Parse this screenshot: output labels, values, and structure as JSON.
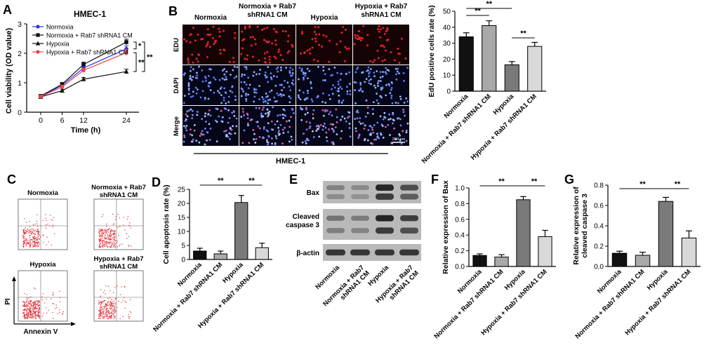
{
  "panel_letters": {
    "A": "A",
    "B": "B",
    "C": "C",
    "D": "D",
    "E": "E",
    "F": "F",
    "G": "G"
  },
  "colors": {
    "black": "#111111",
    "gray_light": "#a9a9a9",
    "gray_mid": "#7a7a7a",
    "gray_pale": "#d9d9d9",
    "blue": "#2b35e0",
    "red": "#e8474c"
  },
  "conditions": [
    "Normoxia",
    "Normoxia + Rab7 shRNA1 CM",
    "Hypoxia",
    "Hypoxia + Rab7 shRNA1 CM"
  ],
  "panel_b": {
    "col_headers": [
      "Normoxia",
      "Normoxia + Rab7\nshRNA1 CM",
      "Hypoxia",
      "Hypoxia + Rab7\nshRNA1 CM"
    ],
    "row_labels": [
      "EDU",
      "DAPI",
      "Merge"
    ],
    "scale_bar": "200 μm",
    "caption": "HMEC-1"
  },
  "panel_c": {
    "titles": [
      "Normoxia",
      "Normoxia + Rab7\nshRNA1 CM",
      "Hypoxia",
      "Hypoxia + Rab7\nshRNA1 CM"
    ],
    "ylabel": "PI",
    "xlabel": "Annexin V"
  },
  "panel_e": {
    "bands": [
      "Bax",
      "Cleaved\ncaspase 3",
      "β-actin"
    ],
    "lanes": [
      "Normoxia",
      "Normoxia + Rab7\nshRNA1 CM",
      "Hypoxia",
      "Hypoxia + Rab7\nshRNA1 CM"
    ]
  },
  "chart_data": [
    {
      "id": "A",
      "type": "line",
      "title": "HMEC-1",
      "xlabel": "Time (h)",
      "ylabel": "Cell viability (OD value)",
      "x": [
        0,
        6,
        12,
        24
      ],
      "ylim": [
        0,
        3
      ],
      "yticks": [
        0,
        1,
        2,
        3
      ],
      "series": [
        {
          "name": "Normoxia",
          "color": "#2b35e0",
          "marker": "circle",
          "values": [
            0.54,
            0.91,
            1.5,
            2.15
          ],
          "errors": [
            0.05,
            0.06,
            0.08,
            0.1
          ]
        },
        {
          "name": "Normoxia + Rab7 shRNA1 CM",
          "color": "#111111",
          "marker": "square",
          "values": [
            0.55,
            0.95,
            1.62,
            2.38
          ],
          "errors": [
            0.05,
            0.06,
            0.08,
            0.1
          ]
        },
        {
          "name": "Hypoxia",
          "color": "#111111",
          "marker": "triangle",
          "values": [
            0.52,
            0.73,
            1.12,
            1.38
          ],
          "errors": [
            0.04,
            0.05,
            0.06,
            0.08
          ]
        },
        {
          "name": "Hypoxia + Rab7 shRNA1 CM",
          "color": "#e8474c",
          "marker": "circle",
          "values": [
            0.53,
            0.86,
            1.42,
            2.02
          ],
          "errors": [
            0.05,
            0.06,
            0.07,
            0.1
          ]
        }
      ],
      "annotations": [
        "*",
        "**",
        "**"
      ]
    },
    {
      "id": "B",
      "type": "bar",
      "ylabel": "EdU positive cells rate (%)",
      "categories": [
        "Normoxia",
        "Normoxia + Rab7 shRNA1 CM",
        "Hypoxia",
        "Hypoxia + Rab7 shRNA1 CM"
      ],
      "values": [
        34,
        41,
        16.5,
        28
      ],
      "errors": [
        2.5,
        3.0,
        2.0,
        2.5
      ],
      "ylim": [
        0,
        50
      ],
      "yticks": [
        0,
        10,
        20,
        30,
        40,
        50
      ],
      "annotations": [
        "**",
        "**",
        "**"
      ]
    },
    {
      "id": "D",
      "type": "bar",
      "ylabel": "Cell apoptosis rate (%)",
      "categories": [
        "Normoxia",
        "Normoxia + Rab7 shRNA1 CM",
        "Hypoxia",
        "Hypoxia + Rab7 shRNA1 CM"
      ],
      "values": [
        3.0,
        2.0,
        20.3,
        4.2
      ],
      "errors": [
        1.0,
        1.0,
        2.5,
        1.6
      ],
      "ylim": [
        0,
        25
      ],
      "yticks": [
        0,
        5,
        10,
        15,
        20,
        25
      ],
      "annotations": [
        "**",
        "**"
      ]
    },
    {
      "id": "F",
      "type": "bar",
      "ylabel": "Relative expression of Bax",
      "categories": [
        "Normoxia",
        "Normoxia + Rab7 shRNA1 CM",
        "Hypoxia",
        "Hypoxia + Rab7 shRNA1 CM"
      ],
      "values": [
        0.14,
        0.12,
        0.85,
        0.38
      ],
      "errors": [
        0.02,
        0.03,
        0.04,
        0.08
      ],
      "ylim": [
        0,
        1.0
      ],
      "yticks": [
        0.0,
        0.2,
        0.4,
        0.6,
        0.8,
        1.0
      ],
      "annotations": [
        "**",
        "**"
      ]
    },
    {
      "id": "G",
      "type": "bar",
      "ylabel": "Relative expression of\ncleaved caspase 3",
      "categories": [
        "Normoxia",
        "Normoxia + Rab7 shRNA1 CM",
        "Hypoxia",
        "Hypoxia + Rab7 shRNA1 CM"
      ],
      "values": [
        0.13,
        0.11,
        0.64,
        0.28
      ],
      "errors": [
        0.02,
        0.03,
        0.04,
        0.07
      ],
      "ylim": [
        0,
        0.8
      ],
      "yticks": [
        0.0,
        0.2,
        0.4,
        0.6,
        0.8
      ],
      "annotations": [
        "**",
        "**"
      ]
    }
  ]
}
